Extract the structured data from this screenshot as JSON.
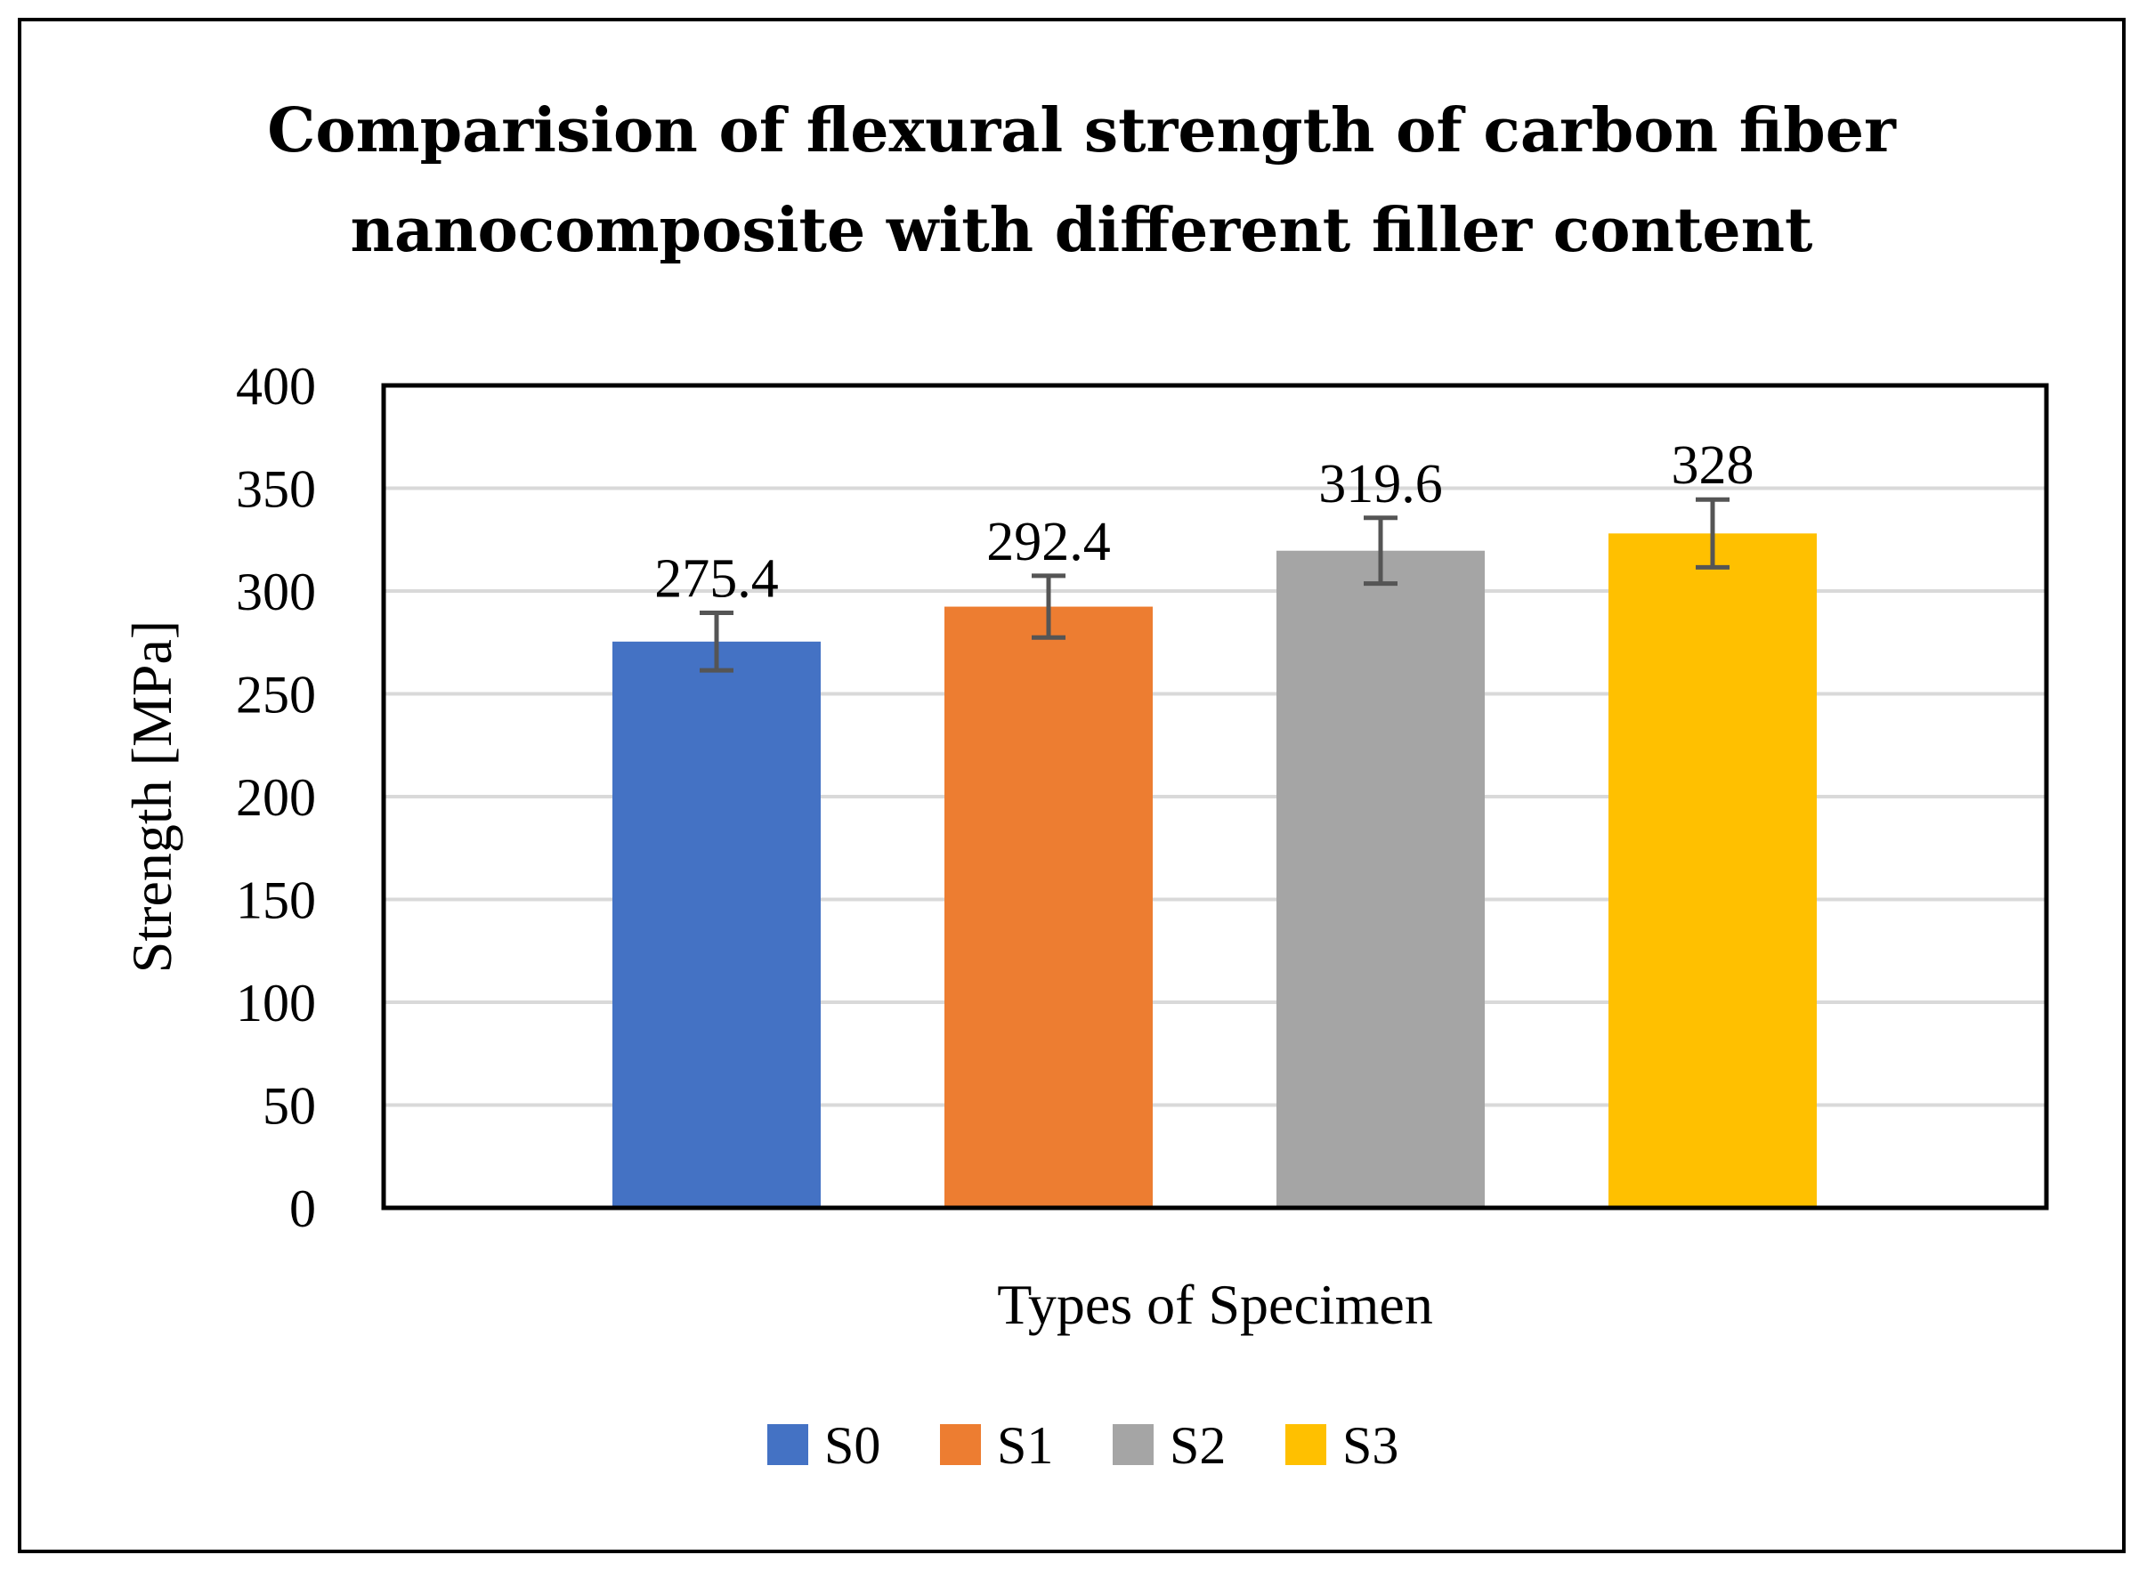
{
  "chart_data": {
    "type": "bar",
    "title_lines": [
      "Comparision of flexural strength of carbon fiber",
      "nanocomposite with different filler content"
    ],
    "xlabel": "Types of Specimen",
    "ylabel": "Strength [MPa]",
    "ylim": [
      0,
      400
    ],
    "yticks": [
      0,
      50,
      100,
      150,
      200,
      250,
      300,
      350,
      400
    ],
    "ytick_labels": [
      "0",
      "50",
      "100",
      "150",
      "200",
      "250",
      "300",
      "350",
      "400"
    ],
    "grid": true,
    "legend_position": "bottom",
    "series": [
      {
        "name": "S0",
        "value": 275.4,
        "label": "275.4",
        "error": 14,
        "color": "#4472C4"
      },
      {
        "name": "S1",
        "value": 292.4,
        "label": "292.4",
        "error": 15,
        "color": "#ED7D31"
      },
      {
        "name": "S2",
        "value": 319.6,
        "label": "319.6",
        "error": 16,
        "color": "#A5A5A5"
      },
      {
        "name": "S3",
        "value": 328,
        "label": "328",
        "error": 16.5,
        "color": "#FFC000"
      }
    ],
    "colors": {
      "grid": "#D9D9D9",
      "error_bar": "#555555",
      "axis": "#000000"
    }
  }
}
